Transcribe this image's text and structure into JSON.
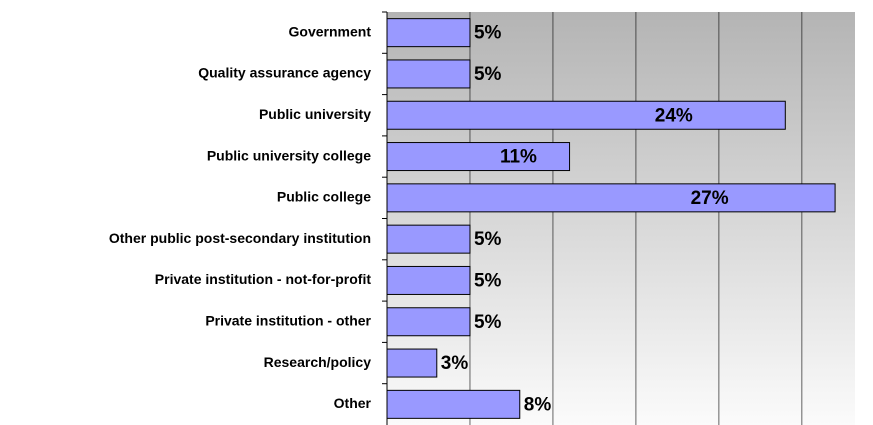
{
  "chart_data": {
    "type": "bar",
    "orientation": "horizontal",
    "categories": [
      "Government",
      "Quality assurance agency",
      "Public university",
      "Public university college",
      "Public college",
      "Other public post-secondary institution",
      "Private institution - not-for-profit",
      "Private institution - other",
      "Research/policy",
      "Other"
    ],
    "values": [
      5,
      5,
      24,
      11,
      27,
      5,
      5,
      5,
      3,
      8
    ],
    "value_labels": [
      "5%",
      "5%",
      "24%",
      "11%",
      "27%",
      "5%",
      "5%",
      "5%",
      "3%",
      "8%"
    ],
    "color": "#9999ff",
    "xlim": [
      0,
      28.2
    ],
    "xticks": [
      0,
      5,
      10,
      15,
      20,
      25
    ],
    "grid": true
  }
}
